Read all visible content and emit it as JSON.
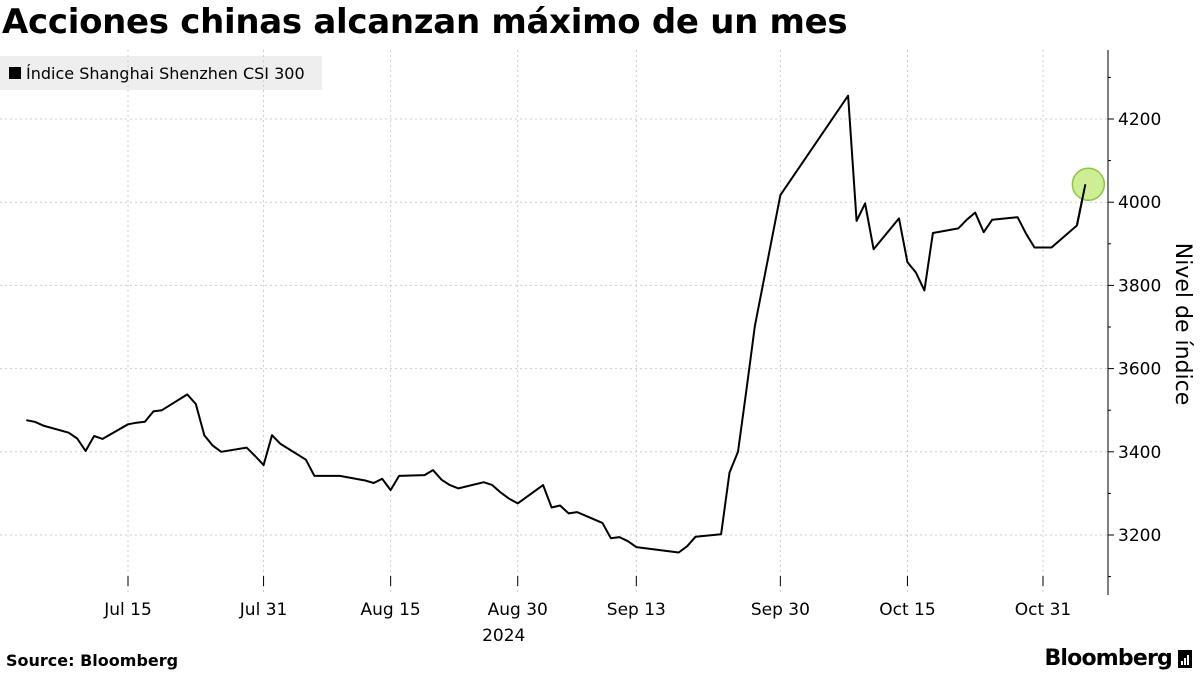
{
  "title": "Acciones chinas alcanzan máximo de un mes",
  "legend": {
    "label": "Índice Shanghai Shenzhen CSI 300"
  },
  "footer": {
    "source": "Source: Bloomberg",
    "brand": "Bloomberg",
    "brand_icon": "bloomberg-terminal-icon"
  },
  "colors": {
    "line": "#000000",
    "highlight_fill": "#c8ec8a",
    "highlight_stroke": "#8dc63f",
    "grid": "#cccccc"
  },
  "chart_data": {
    "type": "line",
    "title": "Acciones chinas alcanzan máximo de un mes",
    "ylabel": "Nivel de índice",
    "xlabel": "2024",
    "ylim": [
      3080,
      4360
    ],
    "yticks": [
      3200,
      3400,
      3600,
      3800,
      4000,
      4200
    ],
    "y_axis_position": "right",
    "grid": true,
    "grid_style": "dotted",
    "legend_position": "top-left",
    "xticks": [
      {
        "label": "Jul 15",
        "date": "2024-07-15"
      },
      {
        "label": "Jul 31",
        "date": "2024-07-31"
      },
      {
        "label": "Aug 15",
        "date": "2024-08-15"
      },
      {
        "label": "Aug 30",
        "date": "2024-08-30"
      },
      {
        "label": "Sep 13",
        "date": "2024-09-13"
      },
      {
        "label": "Sep 30",
        "date": "2024-09-30"
      },
      {
        "label": "Oct 15",
        "date": "2024-10-15"
      },
      {
        "label": "Oct 31",
        "date": "2024-10-31"
      }
    ],
    "series": [
      {
        "name": "Índice Shanghai Shenzhen CSI 300",
        "points": [
          [
            "2024-07-03",
            3476
          ],
          [
            "2024-07-04",
            3472
          ],
          [
            "2024-07-05",
            3463
          ],
          [
            "2024-07-08",
            3446
          ],
          [
            "2024-07-09",
            3432
          ],
          [
            "2024-07-10",
            3402
          ],
          [
            "2024-07-11",
            3438
          ],
          [
            "2024-07-12",
            3431
          ],
          [
            "2024-07-15",
            3466
          ],
          [
            "2024-07-16",
            3470
          ],
          [
            "2024-07-17",
            3472
          ],
          [
            "2024-07-18",
            3497
          ],
          [
            "2024-07-19",
            3500
          ],
          [
            "2024-07-22",
            3538
          ],
          [
            "2024-07-23",
            3515
          ],
          [
            "2024-07-24",
            3440
          ],
          [
            "2024-07-25",
            3415
          ],
          [
            "2024-07-26",
            3400
          ],
          [
            "2024-07-29",
            3410
          ],
          [
            "2024-07-30",
            3390
          ],
          [
            "2024-07-31",
            3368
          ],
          [
            "2024-08-01",
            3440
          ],
          [
            "2024-08-02",
            3419
          ],
          [
            "2024-08-05",
            3381
          ],
          [
            "2024-08-06",
            3342
          ],
          [
            "2024-08-07",
            3342
          ],
          [
            "2024-08-08",
            3342
          ],
          [
            "2024-08-09",
            3342
          ],
          [
            "2024-08-12",
            3331
          ],
          [
            "2024-08-13",
            3325
          ],
          [
            "2024-08-14",
            3335
          ],
          [
            "2024-08-15",
            3308
          ],
          [
            "2024-08-16",
            3342
          ],
          [
            "2024-08-19",
            3344
          ],
          [
            "2024-08-20",
            3356
          ],
          [
            "2024-08-21",
            3333
          ],
          [
            "2024-08-22",
            3320
          ],
          [
            "2024-08-23",
            3312
          ],
          [
            "2024-08-26",
            3327
          ],
          [
            "2024-08-27",
            3320
          ],
          [
            "2024-08-28",
            3302
          ],
          [
            "2024-08-29",
            3287
          ],
          [
            "2024-08-30",
            3276
          ],
          [
            "2024-09-02",
            3320
          ],
          [
            "2024-09-03",
            3266
          ],
          [
            "2024-09-04",
            3271
          ],
          [
            "2024-09-05",
            3252
          ],
          [
            "2024-09-06",
            3255
          ],
          [
            "2024-09-09",
            3229
          ],
          [
            "2024-09-10",
            3192
          ],
          [
            "2024-09-11",
            3195
          ],
          [
            "2024-09-12",
            3185
          ],
          [
            "2024-09-13",
            3171
          ],
          [
            "2024-09-18",
            3158
          ],
          [
            "2024-09-19",
            3173
          ],
          [
            "2024-09-20",
            3196
          ],
          [
            "2024-09-23",
            3202
          ],
          [
            "2024-09-24",
            3350
          ],
          [
            "2024-09-25",
            3400
          ],
          [
            "2024-09-26",
            3550
          ],
          [
            "2024-09-27",
            3703
          ],
          [
            "2024-09-30",
            4017
          ],
          [
            "2024-10-08",
            4256
          ],
          [
            "2024-10-09",
            3955
          ],
          [
            "2024-10-10",
            3997
          ],
          [
            "2024-10-11",
            3887
          ],
          [
            "2024-10-14",
            3961
          ],
          [
            "2024-10-15",
            3856
          ],
          [
            "2024-10-16",
            3831
          ],
          [
            "2024-10-17",
            3788
          ],
          [
            "2024-10-18",
            3926
          ],
          [
            "2024-10-21",
            3937
          ],
          [
            "2024-10-22",
            3958
          ],
          [
            "2024-10-23",
            3975
          ],
          [
            "2024-10-24",
            3928
          ],
          [
            "2024-10-25",
            3958
          ],
          [
            "2024-10-28",
            3964
          ],
          [
            "2024-10-29",
            3924
          ],
          [
            "2024-10-30",
            3891
          ],
          [
            "2024-10-31",
            3891
          ],
          [
            "2024-11-01",
            3891
          ],
          [
            "2024-11-04",
            3944
          ],
          [
            "2024-11-05",
            4043
          ]
        ]
      }
    ],
    "highlight": {
      "date": "2024-11-05",
      "value": 4043
    }
  }
}
